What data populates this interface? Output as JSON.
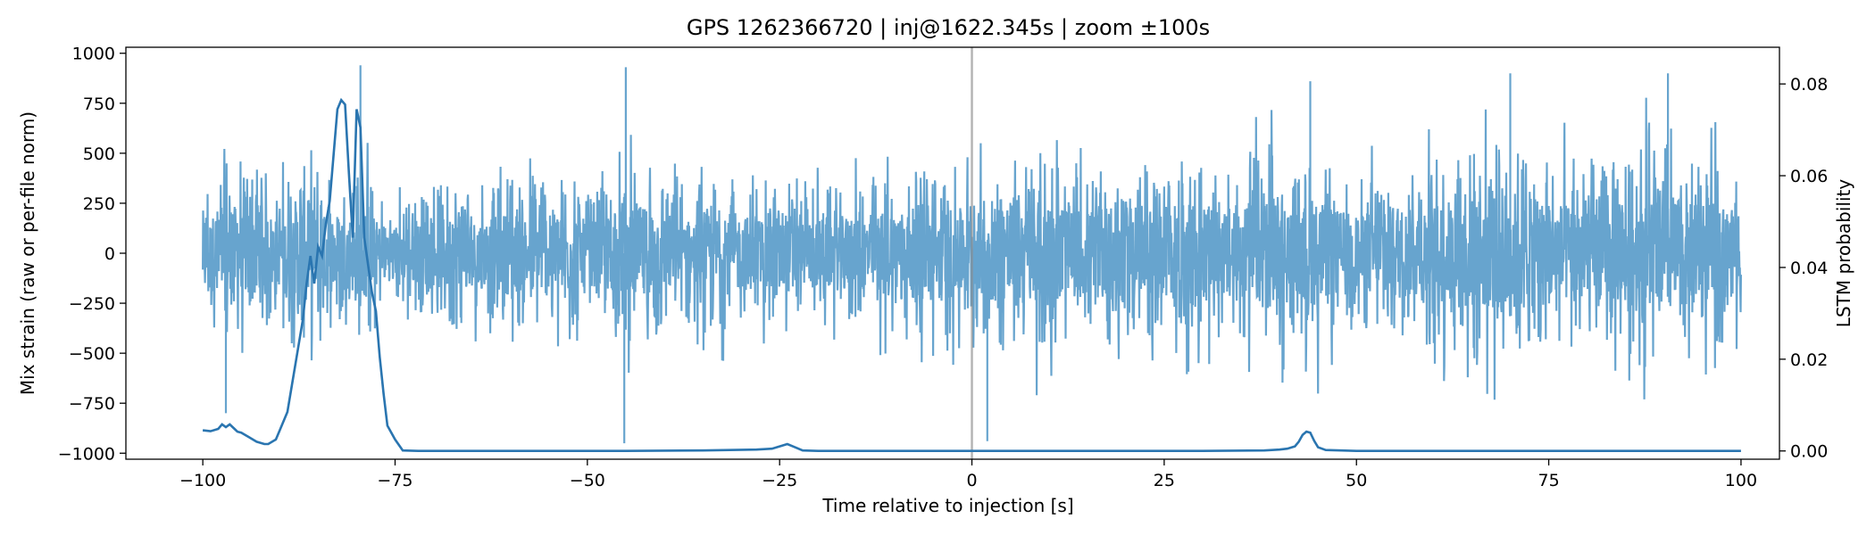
{
  "chart_data": {
    "type": "line",
    "title": "GPS 1262366720 | inj@1622.345s | zoom ±100s",
    "xlabel": "Time relative to injection [s]",
    "ylabel": "Mix strain (raw or per-file norm)",
    "y2label": "LSTM probability",
    "xlim": [
      -110,
      105
    ],
    "ylim": [
      -1030,
      1030
    ],
    "y2lim": [
      -0.0018,
      0.088
    ],
    "xticks": [
      -100,
      -75,
      -50,
      -25,
      0,
      25,
      50,
      75,
      100
    ],
    "yticks": [
      -1000,
      -750,
      -500,
      -250,
      0,
      250,
      500,
      750,
      1000
    ],
    "y2ticks": [
      0.0,
      0.02,
      0.04,
      0.06,
      0.08
    ],
    "xtick_labels": [
      "−100",
      "−75",
      "−50",
      "−25",
      "0",
      "25",
      "50",
      "75",
      "100"
    ],
    "ytick_labels": [
      "−1000",
      "−750",
      "−500",
      "−250",
      "0",
      "250",
      "500",
      "750",
      "1000"
    ],
    "y2tick_labels": [
      "0.00",
      "0.02",
      "0.04",
      "0.06",
      "0.08"
    ],
    "grid": false,
    "vline_x": 0,
    "series": [
      {
        "axis": "left",
        "color": "#5f9fcb",
        "envelope": {
          "x": [
            -100,
            -97,
            -95,
            -93,
            -90,
            -88,
            -85,
            -83,
            -81,
            -79,
            -77,
            -75,
            -72,
            -70,
            -67,
            -65,
            -62,
            -60,
            -58,
            -55,
            -52,
            -50,
            -47,
            -45,
            -42,
            -40,
            -37,
            -35,
            -32,
            -30,
            -28,
            -25,
            -22,
            -20,
            -17,
            -15,
            -12,
            -10,
            -7,
            -5,
            -2,
            0,
            2,
            5,
            7,
            10,
            13,
            15,
            17,
            20,
            22,
            25,
            27,
            30,
            33,
            35,
            37,
            40,
            42,
            45,
            47,
            50,
            53,
            55,
            57,
            60,
            62,
            65,
            67,
            70,
            72,
            75,
            78,
            80,
            82,
            85,
            87,
            90,
            92,
            95,
            97,
            100
          ],
          "amp": [
            300,
            780,
            520,
            700,
            430,
            720,
            480,
            560,
            500,
            660,
            380,
            360,
            420,
            450,
            560,
            440,
            480,
            560,
            520,
            580,
            560,
            420,
            500,
            600,
            620,
            560,
            380,
            500,
            550,
            520,
            460,
            620,
            420,
            460,
            500,
            480,
            550,
            560,
            600,
            580,
            620,
            520,
            600,
            780,
            680,
            760,
            600,
            560,
            640,
            700,
            660,
            540,
            680,
            640,
            560,
            680,
            700,
            760,
            560,
            720,
            580,
            520,
            600,
            640,
            580,
            680,
            700,
            760,
            740,
            860,
            720,
            700,
            660,
            720,
            640,
            680,
            820,
            860,
            700,
            640,
            660,
            520
          ]
        },
        "spikes": [
          {
            "x": -79.5,
            "y": 940
          },
          {
            "x": -45,
            "y": 930
          },
          {
            "x": -45.2,
            "y": -950
          },
          {
            "x": -97,
            "y": -800
          },
          {
            "x": 70,
            "y": 900
          },
          {
            "x": 90.5,
            "y": 900
          },
          {
            "x": 2,
            "y": -940
          },
          {
            "x": 44,
            "y": 860
          }
        ]
      },
      {
        "axis": "right",
        "color": "#2a75b0",
        "x": [
          -100,
          -99,
          -98,
          -97.5,
          -97,
          -96.5,
          -96,
          -95.5,
          -95,
          -94,
          -93,
          -92,
          -91.5,
          -90.5,
          -90,
          -89,
          -88,
          -87,
          -86.5,
          -86,
          -85.5,
          -85,
          -84.5,
          -84,
          -83.5,
          -83,
          -82.5,
          -82,
          -81.5,
          -81,
          -80.5,
          -80,
          -79.5,
          -79,
          -78.5,
          -78,
          -77.5,
          -77,
          -76.5,
          -76,
          -75,
          -74,
          -72,
          -65,
          -55,
          -45,
          -35,
          -28,
          -26,
          -25,
          -24,
          -23,
          -22,
          -20,
          -10,
          0,
          10,
          20,
          30,
          38,
          40,
          41,
          42,
          42.5,
          43,
          43.5,
          44,
          44.5,
          45,
          46,
          50,
          60,
          70,
          80,
          90,
          100
        ],
        "values": [
          0.0045,
          0.0043,
          0.0048,
          0.0058,
          0.0052,
          0.0058,
          0.005,
          0.0042,
          0.004,
          0.003,
          0.002,
          0.0015,
          0.0015,
          0.0025,
          0.0045,
          0.0085,
          0.0185,
          0.0285,
          0.0365,
          0.0425,
          0.0365,
          0.0445,
          0.0425,
          0.0495,
          0.0545,
          0.0645,
          0.0745,
          0.0765,
          0.0755,
          0.0605,
          0.0465,
          0.0745,
          0.0705,
          0.0465,
          0.0405,
          0.0345,
          0.0305,
          0.0205,
          0.0125,
          0.0055,
          0.0025,
          0.0001,
          0.0,
          0.0,
          0.0,
          0.0,
          0.0001,
          0.0003,
          0.0005,
          0.001,
          0.0015,
          0.0008,
          0.0001,
          0.0,
          0.0,
          0.0,
          0.0,
          0.0,
          0.0,
          0.0001,
          0.0003,
          0.0005,
          0.001,
          0.002,
          0.0035,
          0.0042,
          0.004,
          0.0022,
          0.0008,
          0.0002,
          0.0,
          0.0,
          0.0,
          0.0,
          0.0,
          0.0
        ]
      }
    ]
  }
}
